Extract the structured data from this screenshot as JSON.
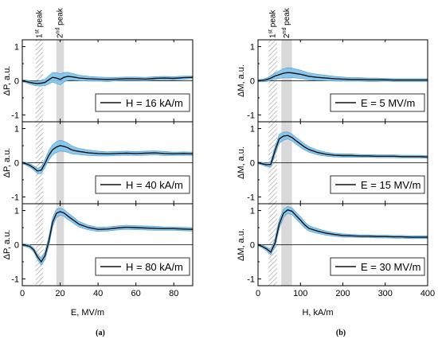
{
  "chart_data": [
    {
      "type": "line",
      "panel_label": "(a)",
      "xlabel": "E, MV/m",
      "ylabel": "ΔP, a.u.",
      "xlim": [
        0,
        90
      ],
      "ylim": [
        -1.2,
        1.2
      ],
      "xticks": [
        "0",
        "20",
        "40",
        "60",
        "80"
      ],
      "yticks": [
        "-1",
        "0",
        "1"
      ],
      "peaks": [
        {
          "label": "1st peak",
          "x_range": [
            7,
            11
          ],
          "style": "hatched"
        },
        {
          "label": "2nd peak",
          "x_range": [
            18,
            22
          ],
          "style": "shaded"
        }
      ],
      "subplots": [
        {
          "legend": "H = 16 kA/m",
          "x": [
            0,
            2,
            4,
            6,
            8,
            10,
            12,
            14,
            16,
            18,
            20,
            22,
            24,
            26,
            28,
            30,
            35,
            40,
            45,
            50,
            55,
            60,
            65,
            70,
            75,
            80,
            85,
            90
          ],
          "values": [
            0.0,
            -0.02,
            -0.05,
            -0.07,
            -0.08,
            -0.07,
            -0.05,
            0.03,
            0.1,
            0.08,
            0.04,
            0.1,
            0.13,
            0.12,
            0.1,
            0.08,
            0.06,
            0.05,
            0.04,
            0.05,
            0.06,
            0.06,
            0.05,
            0.07,
            0.08,
            0.07,
            0.09,
            0.1
          ],
          "band": [
            0.03,
            0.04,
            0.05,
            0.06,
            0.07,
            0.08,
            0.1,
            0.12,
            0.14,
            0.16,
            0.16,
            0.14,
            0.12,
            0.1,
            0.09,
            0.08,
            0.07,
            0.06,
            0.06,
            0.05,
            0.05,
            0.05,
            0.05,
            0.05,
            0.05,
            0.05,
            0.05,
            0.04
          ]
        },
        {
          "legend": "H = 40 kA/m",
          "x": [
            0,
            2,
            4,
            6,
            8,
            10,
            12,
            14,
            16,
            18,
            20,
            22,
            24,
            26,
            28,
            30,
            35,
            40,
            45,
            50,
            55,
            60,
            65,
            70,
            75,
            80,
            85,
            90
          ],
          "values": [
            0.0,
            -0.03,
            -0.08,
            -0.15,
            -0.24,
            -0.22,
            -0.02,
            0.22,
            0.38,
            0.46,
            0.5,
            0.48,
            0.44,
            0.38,
            0.35,
            0.33,
            0.29,
            0.27,
            0.26,
            0.27,
            0.28,
            0.27,
            0.28,
            0.29,
            0.27,
            0.26,
            0.27,
            0.26
          ],
          "band": [
            0.03,
            0.04,
            0.05,
            0.06,
            0.08,
            0.1,
            0.12,
            0.14,
            0.15,
            0.16,
            0.16,
            0.15,
            0.14,
            0.12,
            0.1,
            0.09,
            0.08,
            0.07,
            0.06,
            0.06,
            0.06,
            0.06,
            0.06,
            0.06,
            0.06,
            0.05,
            0.05,
            0.05
          ]
        },
        {
          "legend": "H = 80 kA/m",
          "x": [
            0,
            2,
            4,
            6,
            8,
            10,
            12,
            14,
            16,
            18,
            20,
            22,
            24,
            26,
            28,
            30,
            35,
            40,
            45,
            50,
            55,
            60,
            65,
            70,
            75,
            80,
            85,
            90
          ],
          "values": [
            0.0,
            -0.02,
            -0.05,
            -0.15,
            -0.35,
            -0.5,
            -0.32,
            0.1,
            0.65,
            0.92,
            0.97,
            0.93,
            0.84,
            0.76,
            0.68,
            0.6,
            0.5,
            0.45,
            0.46,
            0.49,
            0.51,
            0.5,
            0.49,
            0.48,
            0.47,
            0.47,
            0.46,
            0.45
          ],
          "band": [
            0.03,
            0.04,
            0.05,
            0.06,
            0.08,
            0.1,
            0.12,
            0.14,
            0.14,
            0.12,
            0.1,
            0.1,
            0.1,
            0.09,
            0.09,
            0.08,
            0.07,
            0.06,
            0.06,
            0.06,
            0.06,
            0.06,
            0.06,
            0.06,
            0.05,
            0.05,
            0.05,
            0.05
          ]
        }
      ]
    },
    {
      "type": "line",
      "panel_label": "(b)",
      "xlabel": "H, kA/m",
      "ylabel": "ΔM, a.u.",
      "xlim": [
        0,
        400
      ],
      "ylim": [
        -1.2,
        1.2
      ],
      "xticks": [
        "0",
        "100",
        "200",
        "300",
        "400"
      ],
      "yticks": [
        "-1",
        "0",
        "1"
      ],
      "peaks": [
        {
          "label": "1st peak",
          "x_range": [
            25,
            45
          ],
          "style": "hatched"
        },
        {
          "label": "2nd peak",
          "x_range": [
            55,
            80
          ],
          "style": "shaded"
        }
      ],
      "subplots": [
        {
          "legend": "E = 5 MV/m",
          "x": [
            0,
            10,
            20,
            30,
            40,
            50,
            60,
            70,
            80,
            90,
            100,
            110,
            120,
            140,
            160,
            180,
            200,
            220,
            240,
            260,
            280,
            300,
            320,
            340,
            360,
            380,
            400
          ],
          "values": [
            0.0,
            0.01,
            0.03,
            0.08,
            0.14,
            0.18,
            0.22,
            0.24,
            0.23,
            0.21,
            0.19,
            0.16,
            0.13,
            0.1,
            0.08,
            0.06,
            0.05,
            0.04,
            0.04,
            0.03,
            0.03,
            0.03,
            0.02,
            0.02,
            0.02,
            0.02,
            0.02
          ],
          "band": [
            0.03,
            0.04,
            0.05,
            0.07,
            0.09,
            0.11,
            0.13,
            0.14,
            0.14,
            0.13,
            0.12,
            0.11,
            0.1,
            0.09,
            0.08,
            0.07,
            0.06,
            0.05,
            0.05,
            0.05,
            0.05,
            0.04,
            0.04,
            0.04,
            0.04,
            0.04,
            0.04
          ]
        },
        {
          "legend": "E = 15 MV/m",
          "x": [
            0,
            10,
            20,
            30,
            40,
            50,
            60,
            70,
            80,
            90,
            100,
            110,
            120,
            140,
            160,
            180,
            200,
            220,
            240,
            260,
            280,
            300,
            320,
            340,
            360,
            380,
            400
          ],
          "values": [
            0.0,
            -0.03,
            -0.06,
            -0.05,
            0.35,
            0.7,
            0.78,
            0.8,
            0.74,
            0.64,
            0.55,
            0.46,
            0.39,
            0.3,
            0.25,
            0.22,
            0.21,
            0.21,
            0.2,
            0.2,
            0.19,
            0.19,
            0.19,
            0.18,
            0.18,
            0.18,
            0.17
          ],
          "band": [
            0.03,
            0.04,
            0.05,
            0.08,
            0.12,
            0.13,
            0.12,
            0.1,
            0.1,
            0.1,
            0.1,
            0.09,
            0.08,
            0.07,
            0.06,
            0.05,
            0.05,
            0.05,
            0.04,
            0.04,
            0.04,
            0.04,
            0.04,
            0.04,
            0.04,
            0.04,
            0.04
          ]
        },
        {
          "legend": "E = 30 MV/m",
          "x": [
            0,
            10,
            20,
            30,
            40,
            50,
            60,
            70,
            80,
            90,
            100,
            110,
            120,
            140,
            160,
            180,
            200,
            220,
            240,
            260,
            280,
            300,
            320,
            340,
            360,
            380,
            400
          ],
          "values": [
            0.0,
            -0.05,
            -0.12,
            -0.22,
            0.05,
            0.6,
            0.92,
            1.02,
            0.98,
            0.85,
            0.72,
            0.58,
            0.48,
            0.4,
            0.34,
            0.3,
            0.27,
            0.26,
            0.25,
            0.25,
            0.24,
            0.24,
            0.23,
            0.23,
            0.22,
            0.22,
            0.22
          ],
          "band": [
            0.03,
            0.04,
            0.06,
            0.08,
            0.12,
            0.14,
            0.12,
            0.1,
            0.1,
            0.1,
            0.1,
            0.09,
            0.08,
            0.07,
            0.06,
            0.05,
            0.05,
            0.04,
            0.04,
            0.04,
            0.04,
            0.04,
            0.04,
            0.04,
            0.04,
            0.04,
            0.04
          ]
        }
      ]
    }
  ],
  "colors": {
    "line": "#111111",
    "band": "#7fc3ec",
    "band_edge": "#3b8fd0",
    "peak_shade": "#d9d9d9",
    "hatch": "#9a9a9a"
  }
}
